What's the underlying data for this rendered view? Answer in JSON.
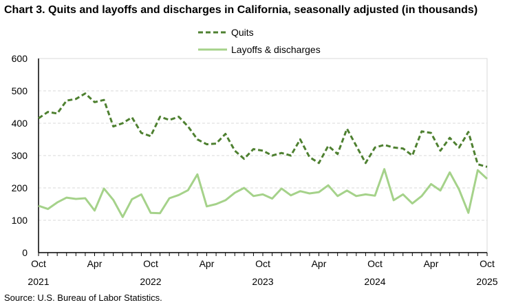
{
  "chart_data": {
    "type": "line",
    "title": "Chart 3. Quits and layoffs and discharges in California, seasonally adjusted (in thousands)",
    "source": "Source: U.S. Bureau of Labor Statistics.",
    "xlabel": "",
    "ylabel": "",
    "ylim": [
      0,
      600
    ],
    "yticks": [
      0,
      100,
      200,
      300,
      400,
      500,
      600
    ],
    "grid": true,
    "legend_placement": "top-center",
    "x_start": "2021-10",
    "x_end": "2025-10",
    "xtick_labels": [
      {
        "month": "Oct",
        "year": "2021"
      },
      {
        "month": "Apr",
        "year": ""
      },
      {
        "month": "Oct",
        "year": "2022"
      },
      {
        "month": "Apr",
        "year": ""
      },
      {
        "month": "Oct",
        "year": "2023"
      },
      {
        "month": "Apr",
        "year": ""
      },
      {
        "month": "Oct",
        "year": "2024"
      },
      {
        "month": "Apr",
        "year": ""
      },
      {
        "month": "Oct",
        "year": "2025"
      }
    ],
    "series": [
      {
        "name": "Quits",
        "color": "#4e8030",
        "style": "dashed",
        "values": [
          415,
          435,
          430,
          470,
          475,
          492,
          465,
          472,
          390,
          400,
          418,
          370,
          360,
          420,
          410,
          420,
          390,
          350,
          335,
          337,
          367,
          315,
          290,
          320,
          315,
          300,
          308,
          300,
          350,
          295,
          277,
          330,
          305,
          383,
          330,
          277,
          325,
          333,
          325,
          322,
          300,
          375,
          370,
          315,
          355,
          325,
          373,
          273,
          265
        ]
      },
      {
        "name": "Layoffs & discharges",
        "color": "#a5d28a",
        "style": "solid",
        "values": [
          145,
          135,
          155,
          170,
          166,
          168,
          130,
          198,
          163,
          110,
          165,
          180,
          123,
          122,
          168,
          178,
          193,
          242,
          143,
          150,
          162,
          185,
          200,
          175,
          180,
          167,
          198,
          177,
          190,
          183,
          187,
          208,
          175,
          192,
          175,
          180,
          176,
          258,
          162,
          180,
          152,
          175,
          212,
          192,
          248,
          195,
          123,
          255,
          228
        ]
      }
    ]
  }
}
